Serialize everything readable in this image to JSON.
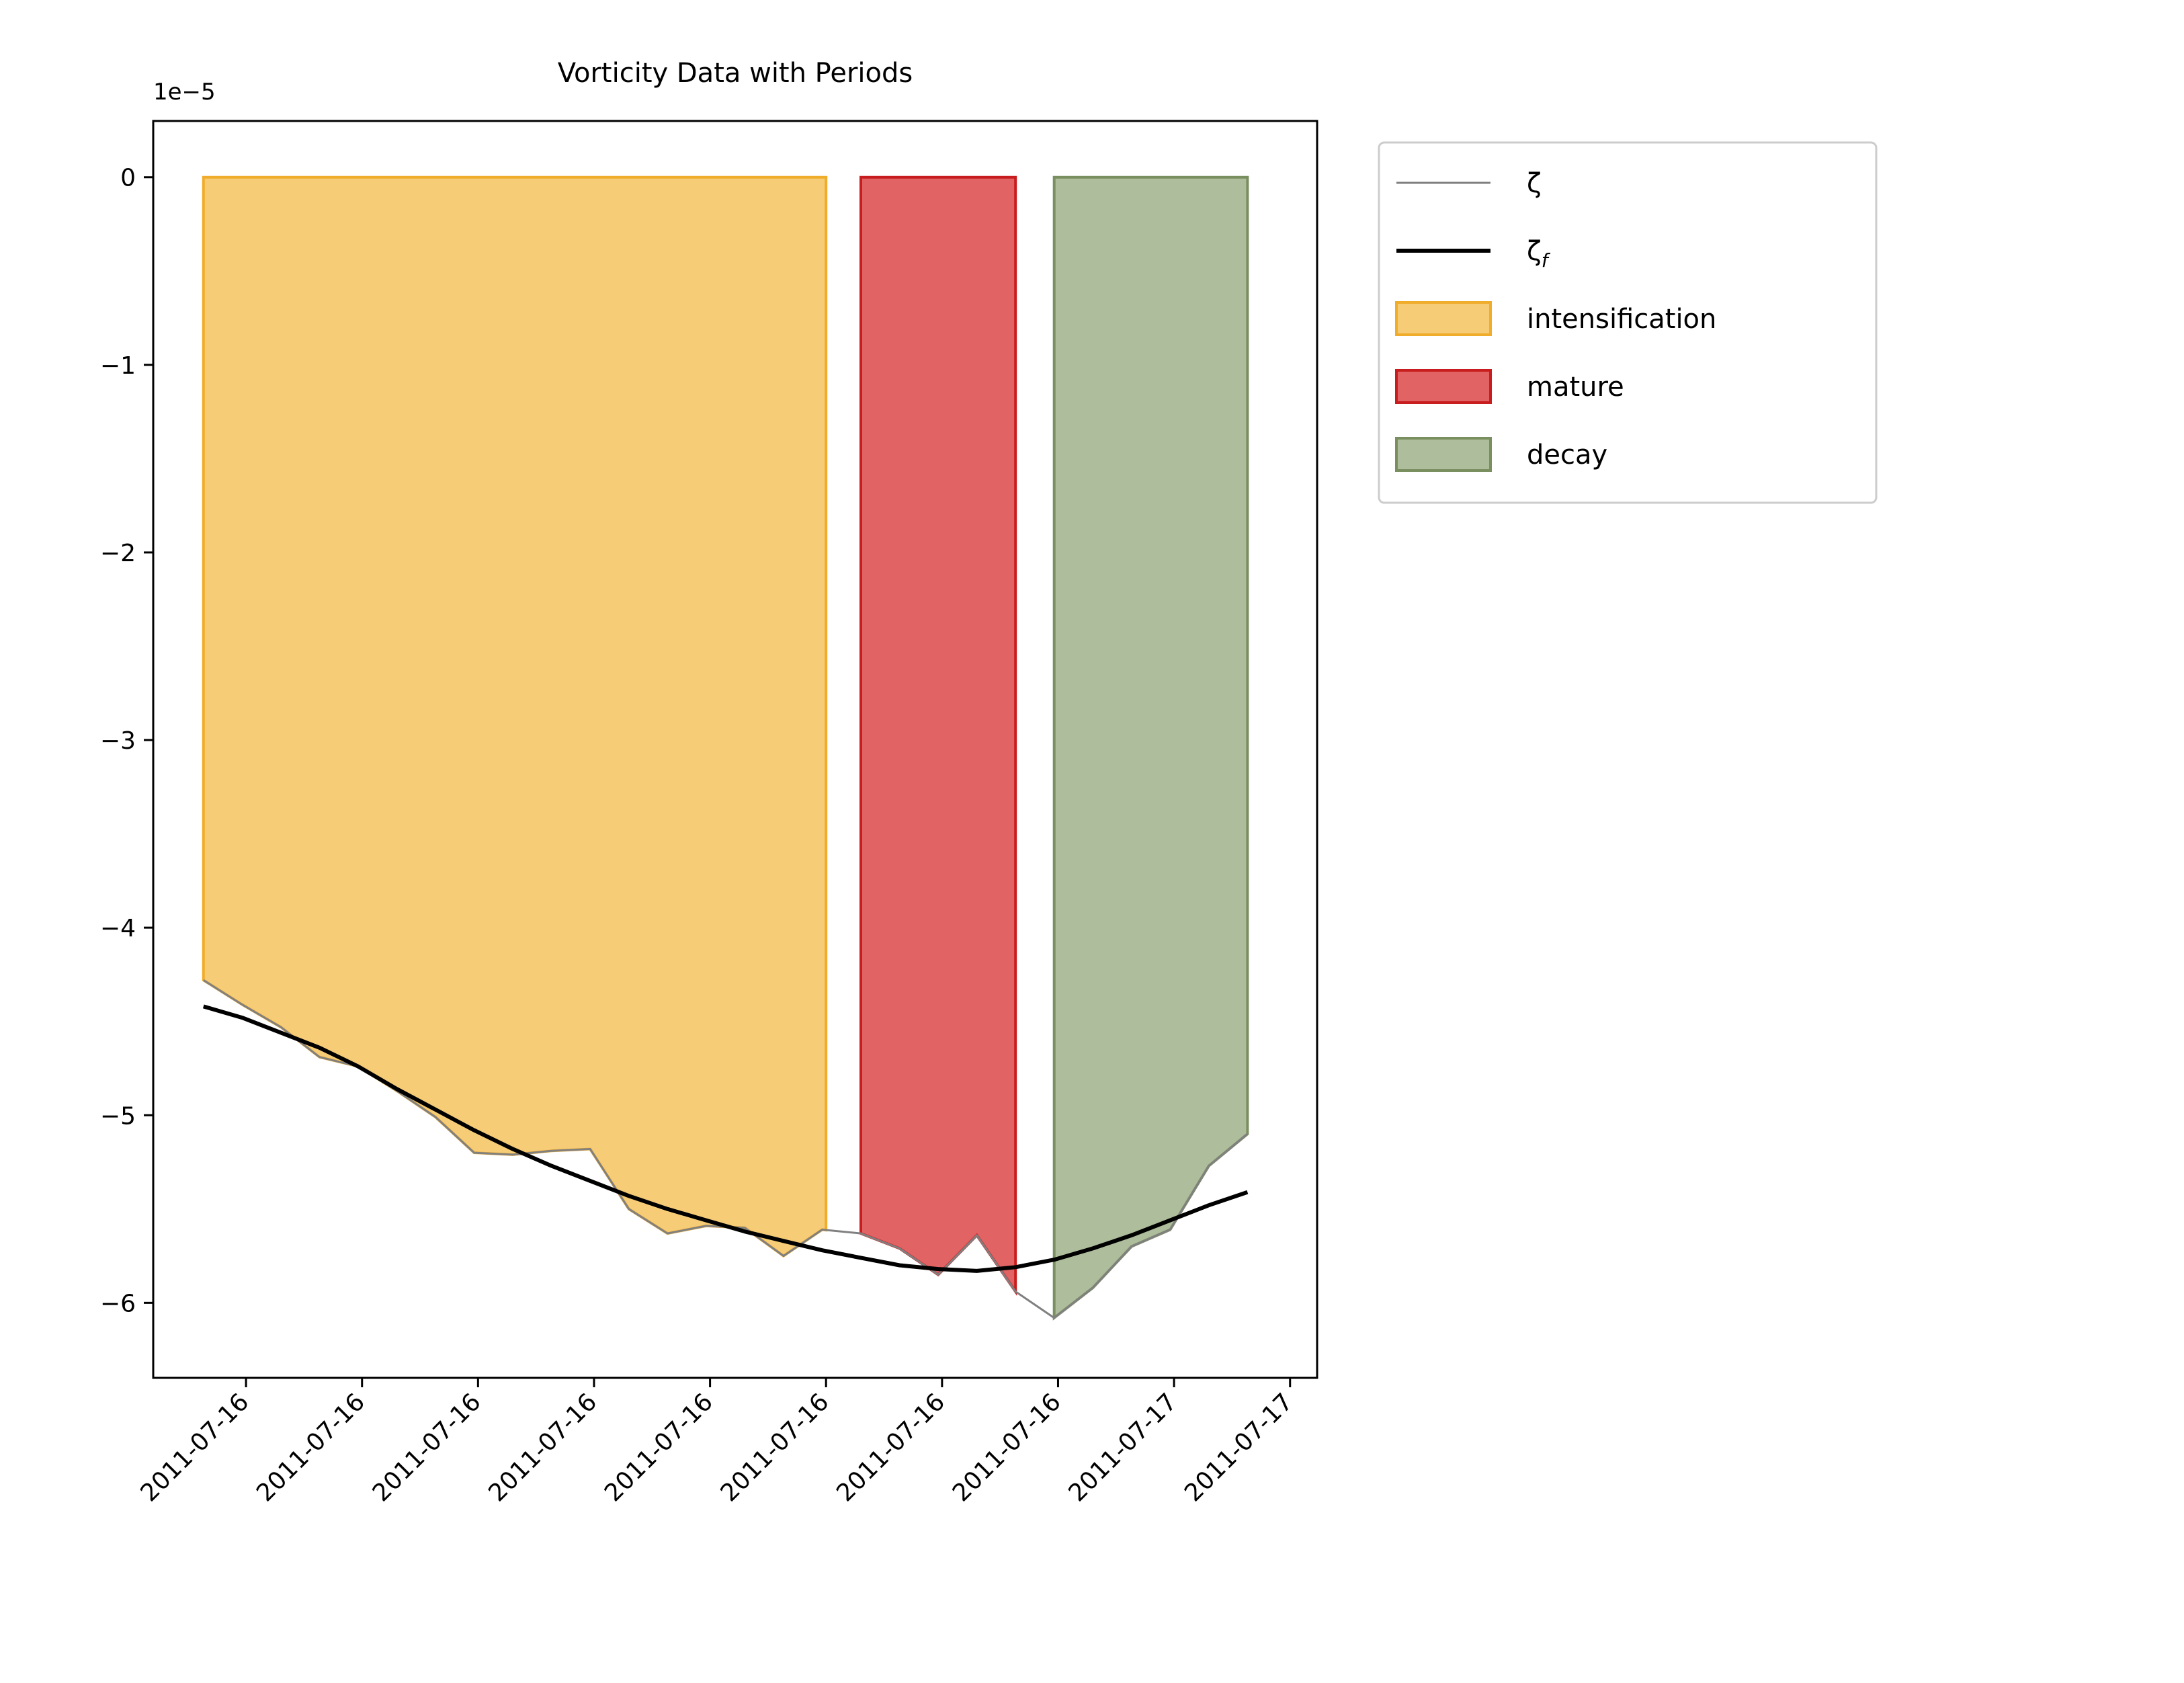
{
  "chart_data": {
    "type": "line",
    "title": "Vorticity Data with Periods",
    "xlabel": "",
    "ylabel": "",
    "y_scale_label": "1e−5",
    "ylim": [
      -6.4e-05,
      3e-06
    ],
    "y_ticks": [
      {
        "value": 0,
        "label": "0"
      },
      {
        "value": -1e-05,
        "label": "−1"
      },
      {
        "value": -2e-05,
        "label": "−2"
      },
      {
        "value": -3e-05,
        "label": "−3"
      },
      {
        "value": -4e-05,
        "label": "−4"
      },
      {
        "value": -5e-05,
        "label": "−5"
      },
      {
        "value": -6e-05,
        "label": "−6"
      }
    ],
    "x_unit": "hour",
    "xlim": [
      -0.8,
      29.3
    ],
    "x_ticks": [
      {
        "value": 1.6,
        "label": "2011-07-16"
      },
      {
        "value": 4.6,
        "label": "2011-07-16"
      },
      {
        "value": 7.6,
        "label": "2011-07-16"
      },
      {
        "value": 10.6,
        "label": "2011-07-16"
      },
      {
        "value": 13.6,
        "label": "2011-07-16"
      },
      {
        "value": 16.6,
        "label": "2011-07-16"
      },
      {
        "value": 19.6,
        "label": "2011-07-16"
      },
      {
        "value": 22.6,
        "label": "2011-07-16"
      },
      {
        "value": 25.6,
        "label": "2011-07-17"
      },
      {
        "value": 28.6,
        "label": "2011-07-17"
      }
    ],
    "grid": false,
    "legend_position": "outside-right-top",
    "legend": [
      {
        "label": "ζ",
        "kind": "line",
        "series": "zeta"
      },
      {
        "label": "ζ",
        "sub": "f",
        "kind": "line",
        "series": "zeta_f"
      },
      {
        "label": "intensification",
        "kind": "patch",
        "period": "intensification"
      },
      {
        "label": "mature",
        "kind": "patch",
        "period": "mature"
      },
      {
        "label": "decay",
        "kind": "patch",
        "period": "decay"
      }
    ],
    "periods": [
      {
        "name": "intensification",
        "start": 0.5,
        "end": 16.6,
        "color": "#f4b942",
        "edge": "#f0ad2c"
      },
      {
        "name": "mature",
        "start": 17.5,
        "end": 21.5,
        "color": "#d62728",
        "edge": "#c81d1e"
      },
      {
        "name": "decay",
        "start": 22.5,
        "end": 27.5,
        "color": "#8fa474",
        "edge": "#7a8f60"
      }
    ],
    "series": [
      {
        "id": "zeta",
        "color": "#808080",
        "x": [
          0.5,
          1.5,
          2.5,
          3.5,
          4.5,
          5.5,
          6.5,
          7.5,
          8.5,
          9.5,
          10.5,
          11.5,
          12.5,
          13.5,
          14.5,
          15.5,
          16.5,
          17.5,
          18.5,
          19.5,
          20.5,
          21.5,
          22.5,
          23.5,
          24.5,
          25.5,
          26.5,
          27.5
        ],
        "values": [
          -4.28e-05,
          -4.41e-05,
          -4.53e-05,
          -4.69e-05,
          -4.74e-05,
          -4.87e-05,
          -5.01e-05,
          -5.2e-05,
          -5.21e-05,
          -5.19e-05,
          -5.18e-05,
          -5.5e-05,
          -5.63e-05,
          -5.59e-05,
          -5.6e-05,
          -5.75e-05,
          -5.61e-05,
          -5.63e-05,
          -5.71e-05,
          -5.85e-05,
          -5.64e-05,
          -5.94e-05,
          -6.08e-05,
          -5.92e-05,
          -5.7e-05,
          -5.61e-05,
          -5.27e-05,
          -5.1e-05
        ]
      },
      {
        "id": "zeta_f",
        "color": "#000000",
        "x": [
          0.5,
          1.5,
          2.5,
          3.5,
          4.5,
          5.5,
          6.5,
          7.5,
          8.5,
          9.5,
          10.5,
          11.5,
          12.5,
          13.5,
          14.5,
          15.5,
          16.5,
          17.5,
          18.5,
          19.5,
          20.5,
          21.5,
          22.5,
          23.5,
          24.5,
          25.5,
          26.5,
          27.5
        ],
        "values": [
          -4.42e-05,
          -4.48e-05,
          -4.56e-05,
          -4.64e-05,
          -4.74e-05,
          -4.86e-05,
          -4.97e-05,
          -5.08e-05,
          -5.18e-05,
          -5.27e-05,
          -5.35e-05,
          -5.43e-05,
          -5.5e-05,
          -5.56e-05,
          -5.62e-05,
          -5.67e-05,
          -5.72e-05,
          -5.76e-05,
          -5.8e-05,
          -5.82e-05,
          -5.83e-05,
          -5.81e-05,
          -5.77e-05,
          -5.71e-05,
          -5.64e-05,
          -5.56e-05,
          -5.48e-05,
          -5.41e-05
        ]
      }
    ]
  }
}
